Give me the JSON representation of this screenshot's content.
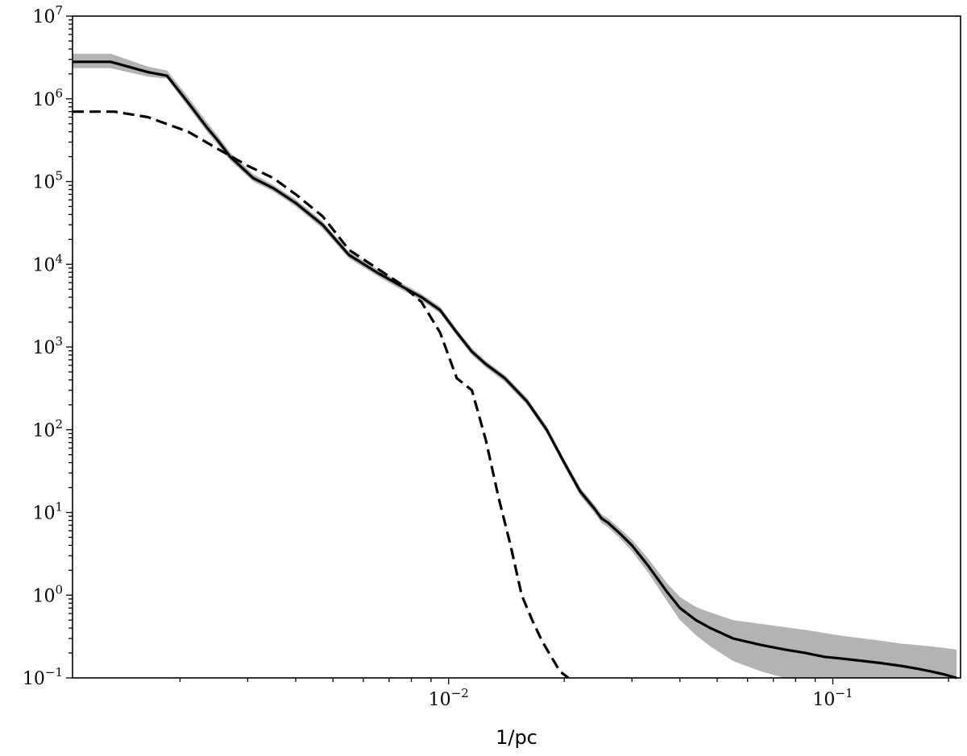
{
  "chart_data": {
    "type": "line",
    "title": "",
    "xlabel": "1/pc",
    "ylabel": "",
    "xscale": "log",
    "yscale": "log",
    "xlim": [
      0.00105,
      0.215
    ],
    "ylim": [
      0.1,
      10000000
    ],
    "grid": false,
    "legend": "none",
    "x_ticks": [
      {
        "value": 0.01,
        "base": "10",
        "exp": "−2"
      },
      {
        "value": 0.1,
        "base": "10",
        "exp": "−1"
      }
    ],
    "y_ticks": [
      {
        "value": 0.1,
        "base": "10",
        "exp": "−1"
      },
      {
        "value": 1,
        "base": "10",
        "exp": "0"
      },
      {
        "value": 10,
        "base": "10",
        "exp": "1"
      },
      {
        "value": 100,
        "base": "10",
        "exp": "2"
      },
      {
        "value": 1000,
        "base": "10",
        "exp": "3"
      },
      {
        "value": 10000,
        "base": "10",
        "exp": "4"
      },
      {
        "value": 100000,
        "base": "10",
        "exp": "5"
      },
      {
        "value": 1000000,
        "base": "10",
        "exp": "6"
      },
      {
        "value": 10000000,
        "base": "10",
        "exp": "7"
      }
    ],
    "colors": {
      "line": "#000000",
      "band": "#b3b3b3"
    },
    "series": [
      {
        "style": "solid",
        "x": [
          0.00105,
          0.00132,
          0.00165,
          0.00185,
          0.0021,
          0.00235,
          0.0025,
          0.0027,
          0.0031,
          0.0035,
          0.004,
          0.0047,
          0.0055,
          0.0065,
          0.0075,
          0.0085,
          0.0095,
          0.0105,
          0.0115,
          0.0125,
          0.014,
          0.016,
          0.018,
          0.02,
          0.022,
          0.024,
          0.025,
          0.026,
          0.028,
          0.03,
          0.033,
          0.037,
          0.04,
          0.044,
          0.048,
          0.055,
          0.065,
          0.075,
          0.085,
          0.095,
          0.107,
          0.12,
          0.135,
          0.15,
          0.165,
          0.18,
          0.195,
          0.21
        ],
        "y": [
          2800000,
          2800000,
          2100000,
          1900000,
          900000,
          450000,
          320000,
          200000,
          110000,
          83000,
          55000,
          30000,
          13000,
          8000,
          5500,
          4000,
          2800,
          1500,
          880,
          620,
          420,
          220,
          100,
          40,
          18,
          11,
          8.5,
          7.5,
          5.5,
          4,
          2.3,
          1.1,
          0.7,
          0.5,
          0.4,
          0.3,
          0.25,
          0.22,
          0.2,
          0.18,
          0.17,
          0.16,
          0.15,
          0.14,
          0.13,
          0.12,
          0.11,
          0.1
        ],
        "band_lower": [
          2350000,
          2350000,
          1850000,
          1750000,
          800000,
          400000,
          285000,
          180000,
          100000,
          76000,
          50000,
          27000,
          11800,
          7300,
          5000,
          3650,
          2550,
          1370,
          800,
          565,
          380,
          200,
          91,
          36,
          16,
          9.8,
          7.5,
          6.6,
          4.8,
          3.4,
          1.9,
          0.85,
          0.5,
          0.33,
          0.24,
          0.16,
          0.12,
          0.1,
          0.1,
          0.1,
          0.1,
          0.1,
          0.1,
          0.1,
          0.1,
          0.1,
          0.1,
          0.1
        ],
        "band_upper": [
          3500000,
          3500000,
          2450000,
          2200000,
          1050000,
          520000,
          365000,
          225000,
          123000,
          91000,
          61000,
          33000,
          14200,
          8800,
          6000,
          4380,
          3070,
          1640,
          965,
          680,
          460,
          242,
          110,
          44,
          20,
          12.3,
          9.5,
          8.5,
          6.3,
          4.7,
          2.8,
          1.4,
          0.95,
          0.72,
          0.62,
          0.5,
          0.45,
          0.41,
          0.38,
          0.35,
          0.32,
          0.3,
          0.28,
          0.26,
          0.25,
          0.24,
          0.23,
          0.22
        ]
      },
      {
        "style": "dashed",
        "x": [
          0.00105,
          0.00135,
          0.00165,
          0.0021,
          0.0025,
          0.003,
          0.0035,
          0.004,
          0.0047,
          0.0055,
          0.0065,
          0.0075,
          0.0085,
          0.0095,
          0.0105,
          0.0115,
          0.0125,
          0.0135,
          0.0145,
          0.0155,
          0.0165,
          0.0175,
          0.0185,
          0.0195,
          0.0205
        ],
        "y": [
          700000,
          700000,
          600000,
          400000,
          250000,
          155000,
          110000,
          70000,
          38000,
          15000,
          9000,
          5800,
          3500,
          1500,
          420,
          300,
          75,
          15,
          4,
          1,
          0.5,
          0.28,
          0.18,
          0.12,
          0.1
        ]
      }
    ]
  }
}
